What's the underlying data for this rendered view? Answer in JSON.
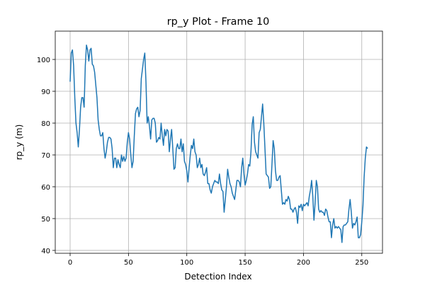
{
  "chart_data": {
    "type": "line",
    "title": "rp_y Plot - Frame 10",
    "x_label": "Detection Index",
    "y_label": "rp_y (m)",
    "color": "#1f77b4",
    "grid": true,
    "xlim": [
      -12.75,
      267.75
    ],
    "xticks": [
      0,
      50,
      100,
      150,
      200,
      250
    ],
    "ylim": [
      39.1,
      108.9
    ],
    "yticks": [
      40,
      50,
      60,
      70,
      80,
      90,
      100
    ],
    "values": [
      93,
      102,
      103,
      98,
      88,
      80,
      77,
      72.5,
      78,
      85,
      88,
      88,
      85,
      98,
      104.5,
      103,
      99.5,
      103,
      103.5,
      98.5,
      98,
      96,
      92,
      88,
      81,
      78,
      76,
      76,
      77,
      72,
      69,
      71,
      74,
      75.5,
      75.5,
      75,
      72,
      66,
      69,
      69,
      66,
      68.5,
      67,
      66,
      70,
      68,
      69.5,
      68,
      69,
      74,
      77,
      75,
      70,
      66,
      68,
      76,
      83,
      84.5,
      85,
      82,
      84,
      94,
      97,
      100,
      102,
      93,
      80,
      82,
      79,
      75,
      81,
      81.5,
      81.5,
      80,
      74,
      74.5,
      75.5,
      75,
      80,
      76,
      73,
      78,
      76,
      78,
      77.5,
      71,
      75,
      78,
      72,
      65.5,
      66,
      72,
      73.5,
      72,
      72,
      75,
      71,
      73.5,
      68,
      67,
      65,
      61.5,
      66,
      70,
      73,
      72,
      75,
      71,
      70,
      66,
      67,
      69,
      66,
      67,
      64,
      63.5,
      64.5,
      66,
      61,
      61,
      59,
      58,
      60,
      61,
      62,
      61.5,
      61.5,
      61,
      64,
      61,
      59,
      58.5,
      52,
      56,
      60,
      65.5,
      63,
      61,
      60,
      58,
      57,
      56,
      59,
      62,
      62,
      61.5,
      60,
      66,
      69,
      64,
      60.5,
      62,
      64,
      67,
      66.5,
      71,
      79.5,
      82,
      74,
      71,
      70,
      69,
      77,
      78,
      82,
      86,
      80,
      72,
      64,
      63.5,
      63,
      59.5,
      60,
      67,
      74.5,
      72,
      65,
      62,
      62,
      63,
      63.5,
      59,
      54.5,
      55,
      54.5,
      56,
      55.5,
      57,
      56,
      53,
      53,
      52,
      53,
      53.5,
      52,
      48.5,
      54,
      53.5,
      54.5,
      52.5,
      54.5,
      54,
      54.5,
      55,
      54,
      57,
      59,
      62,
      57,
      49.5,
      55,
      62,
      60,
      53,
      52,
      52.5,
      52,
      52,
      51,
      53,
      52.5,
      50.5,
      49,
      49,
      44,
      48,
      50,
      47,
      47.5,
      47,
      47.5,
      47,
      46.5,
      42.5,
      47.5,
      48,
      48,
      48.5,
      49,
      53,
      56,
      52,
      47,
      48.5,
      48,
      49,
      50.5,
      44,
      44,
      45,
      49,
      54,
      63,
      69,
      72.5,
      72
    ]
  }
}
